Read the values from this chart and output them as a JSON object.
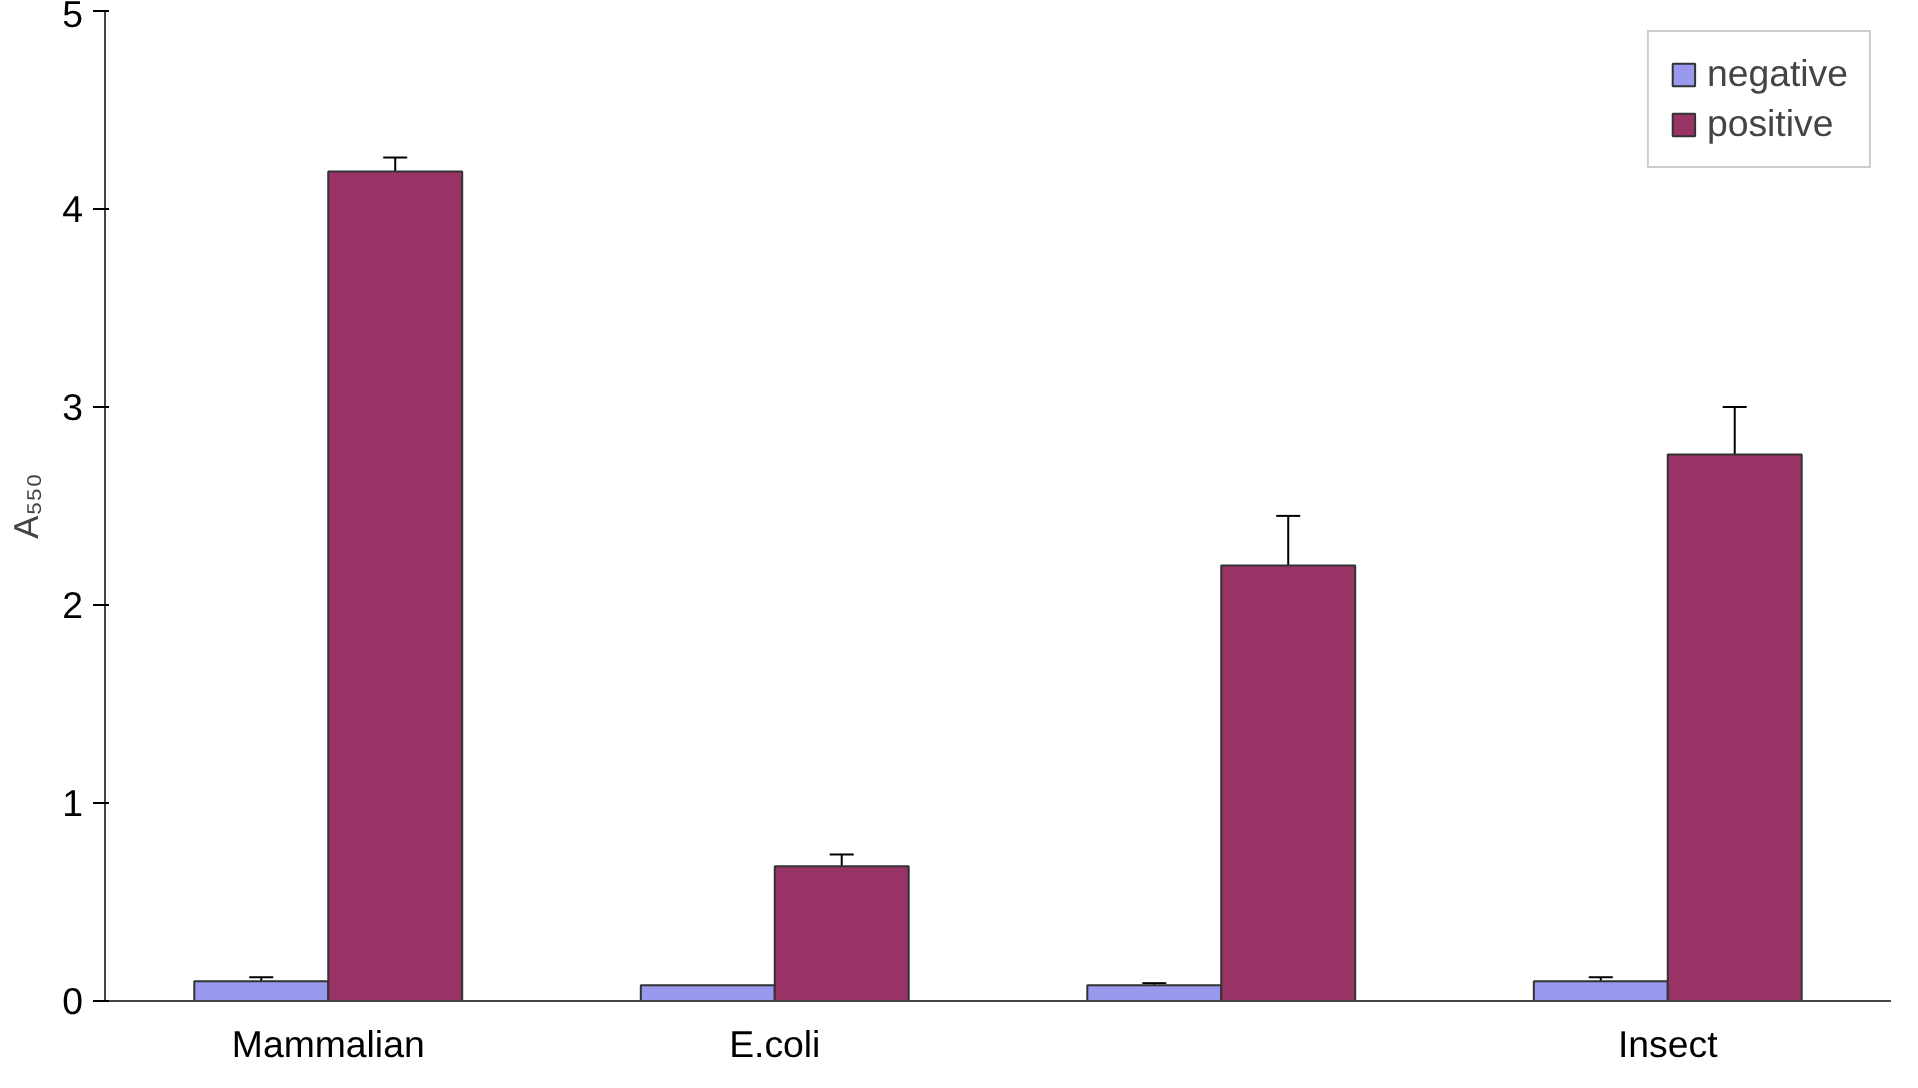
{
  "chart_data": {
    "type": "bar",
    "ylabel": "A₅₅₀",
    "categories": [
      "Mammalian",
      "E.coli",
      null,
      "Insect"
    ],
    "series": [
      {
        "name": "negative",
        "color": "#9999ee",
        "values": [
          0.1,
          0.08,
          0.08,
          0.1
        ],
        "errors": [
          0.02,
          null,
          0.01,
          0.02
        ]
      },
      {
        "name": "positive",
        "color": "#993366",
        "values": [
          4.19,
          0.68,
          2.2,
          2.76
        ],
        "errors": [
          0.07,
          0.06,
          0.25,
          0.24
        ]
      }
    ],
    "ylim": [
      0,
      5
    ],
    "yticks": [
      0,
      1,
      2,
      3,
      4,
      5
    ],
    "grid": false,
    "legend": "top right"
  }
}
